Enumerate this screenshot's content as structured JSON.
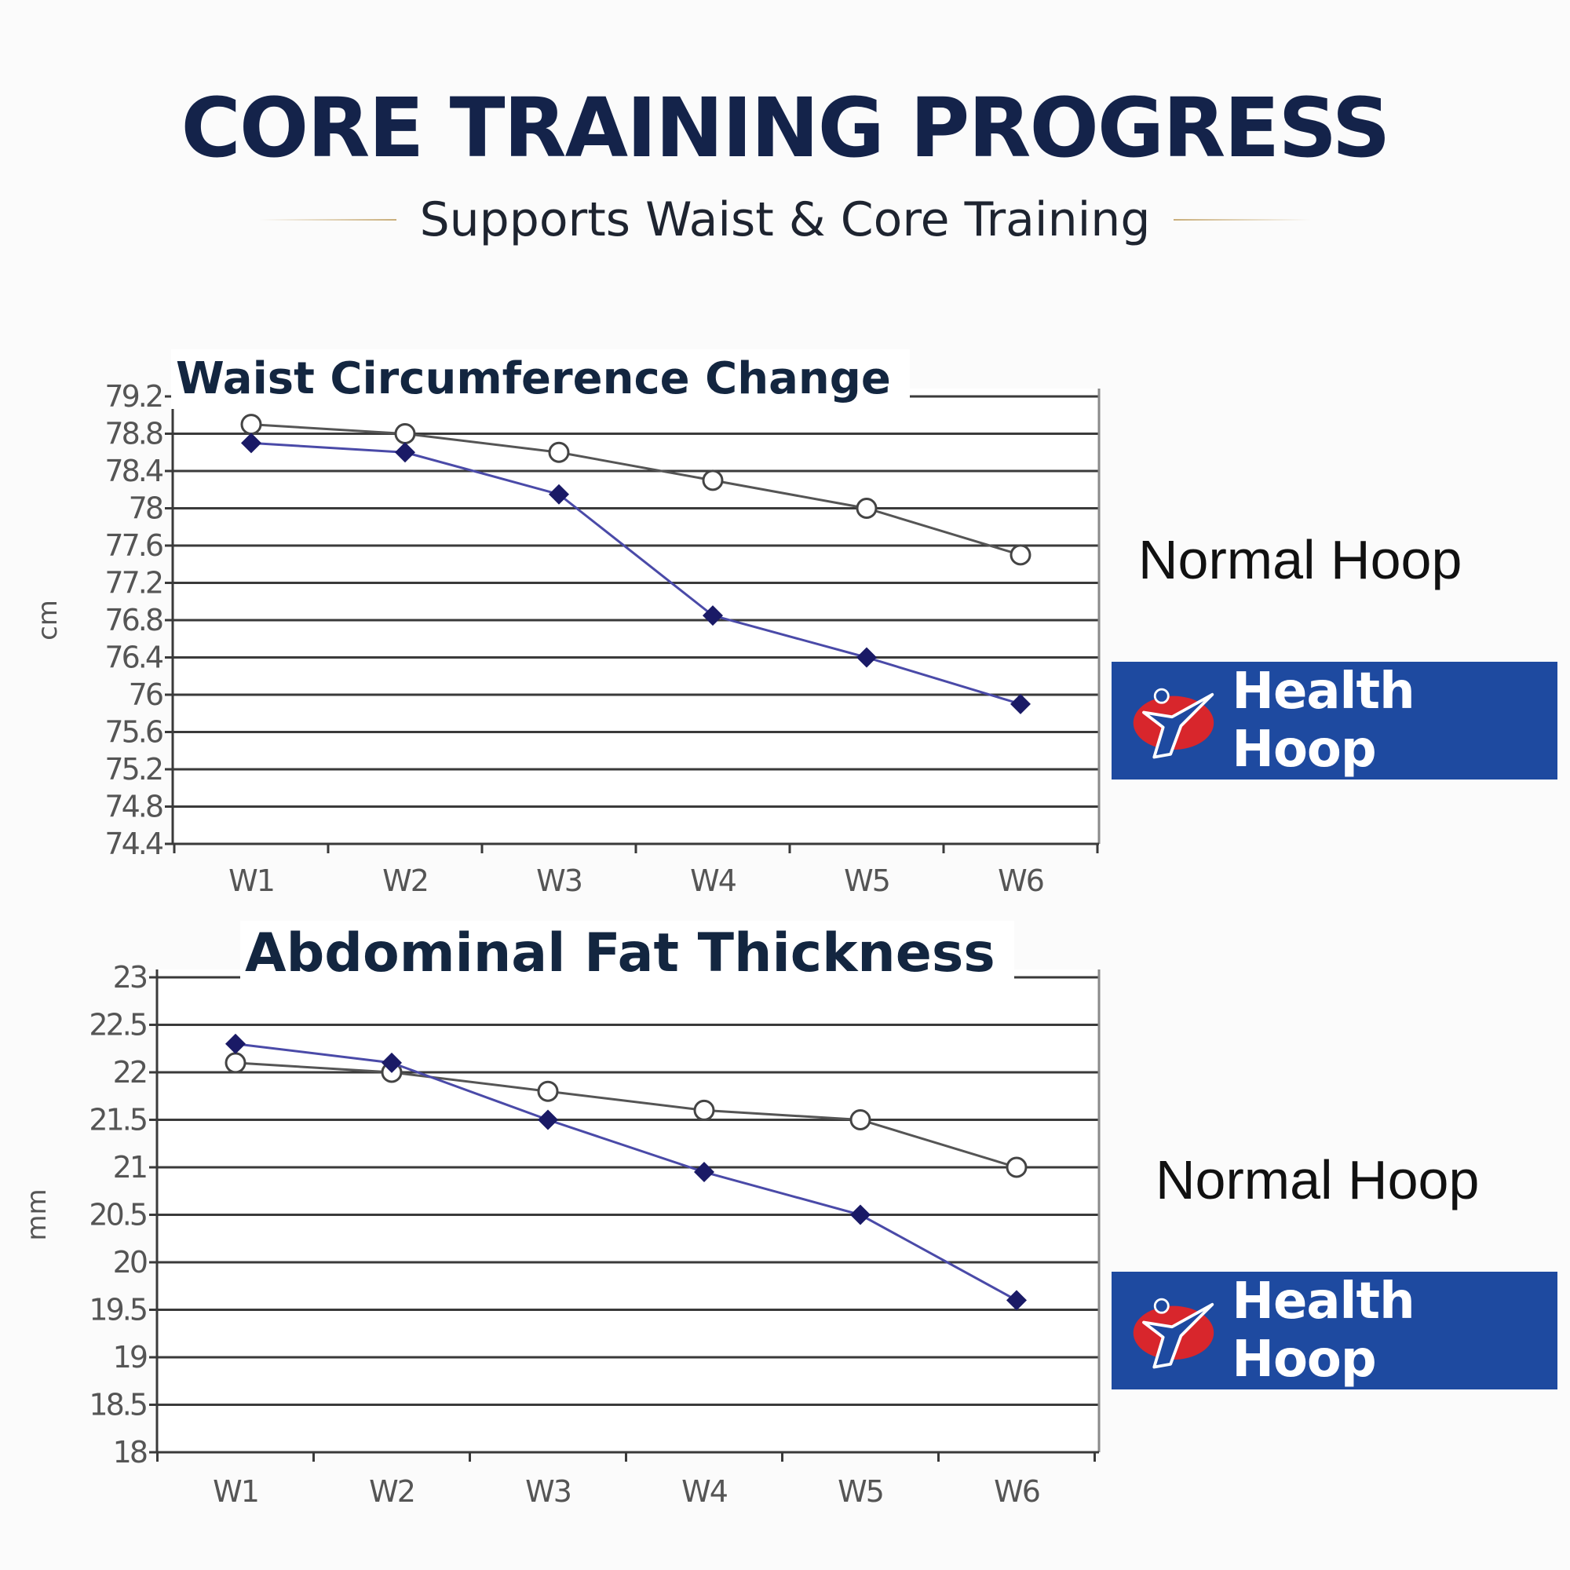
{
  "header": {
    "title": "CORE TRAINING PROGRESS",
    "subtitle": "Supports Waist & Core Training"
  },
  "colors": {
    "title": "#14234a",
    "normal_series": "#444444",
    "health_series": "#1a1a66",
    "badge_background": "#1e4aa0",
    "logo_red": "#d8262c",
    "accent_rule": "#c9ae7a"
  },
  "chart_data": [
    {
      "type": "line",
      "title": "Waist Circumference Change",
      "xlabel": "",
      "ylabel": "cm",
      "categories": [
        "W1",
        "W2",
        "W3",
        "W4",
        "W5",
        "W6"
      ],
      "y_ticks": [
        "79.2",
        "78.8",
        "78.4",
        "78",
        "77.6",
        "77.2",
        "76.8",
        "76.4",
        "76",
        "75.6",
        "75.2",
        "74.8",
        "74.4"
      ],
      "ylim": [
        74.4,
        79.2
      ],
      "grid": true,
      "series": [
        {
          "name": "Normal Hoop",
          "marker": "open-circle",
          "values": [
            78.9,
            78.8,
            78.6,
            78.3,
            78.0,
            77.5
          ]
        },
        {
          "name": "Health Hoop",
          "marker": "filled-diamond",
          "values": [
            78.7,
            78.6,
            78.15,
            76.85,
            76.4,
            75.9
          ]
        }
      ],
      "legend_placement": "right"
    },
    {
      "type": "line",
      "title": "Abdominal Fat Thickness",
      "xlabel": "",
      "ylabel": "mm",
      "categories": [
        "W1",
        "W2",
        "W3",
        "W4",
        "W5",
        "W6"
      ],
      "y_ticks": [
        "23",
        "22.5",
        "22",
        "21.5",
        "21",
        "20.5",
        "20",
        "19.5",
        "19",
        "18.5",
        "18"
      ],
      "ylim": [
        18,
        23
      ],
      "grid": true,
      "series": [
        {
          "name": "Normal Hoop",
          "marker": "open-circle",
          "values": [
            22.1,
            22.0,
            21.8,
            21.6,
            21.5,
            21.0
          ]
        },
        {
          "name": "Health Hoop",
          "marker": "filled-diamond",
          "values": [
            22.3,
            22.1,
            21.5,
            20.95,
            20.5,
            19.6
          ]
        }
      ],
      "legend_placement": "right"
    }
  ]
}
